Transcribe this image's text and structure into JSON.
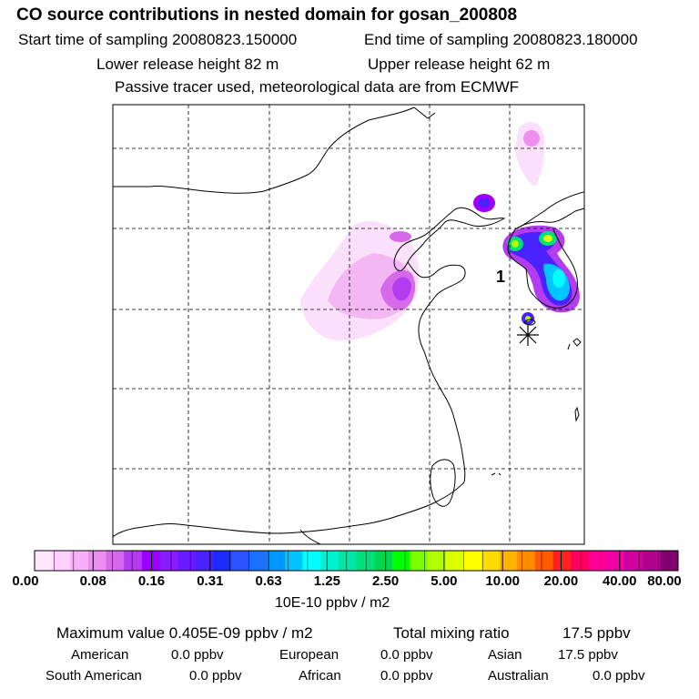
{
  "header": {
    "title": "CO  source contributions in nested domain for gosan_200808",
    "start_label": "Start time of sampling 20080823.150000",
    "end_label": "End time of sampling 20080823.180000",
    "lower_label": "Lower release height   82 m",
    "upper_label": "Upper release height   62 m",
    "note": "Passive tracer used, meteorological data are from ECMWF"
  },
  "map": {
    "receptor_label": "1",
    "station_marker": "receptor-star"
  },
  "colorbar": {
    "ticks": [
      "0.00",
      "0.08",
      "0.16",
      "0.31",
      "0.63",
      "1.25",
      "2.50",
      "5.00",
      "10.00",
      "20.00",
      "40.00",
      "80.00"
    ],
    "colors": [
      "#ffe8ff",
      "#ffd0ff",
      "#f7b0f7",
      "#ee8ef0",
      "#d66aea",
      "#b33cf0",
      "#9a00ff",
      "#8a1cff",
      "#6a1aff",
      "#4a22ff",
      "#1c2cff",
      "#2a52ff",
      "#1a70ff",
      "#0096ff",
      "#00c6ff",
      "#00ffff",
      "#00f0d0",
      "#00e6a6",
      "#00e07a",
      "#00d650",
      "#00ff00",
      "#7cff00",
      "#b2ff00",
      "#dcff00",
      "#ffff00",
      "#ffdc00",
      "#ffb400",
      "#ff8c00",
      "#ff5a00",
      "#ff2020",
      "#ff0060",
      "#ff0096",
      "#f000a6",
      "#d000a0",
      "#b0008c",
      "#800070"
    ],
    "unit": "10E-10 ppbv / m2"
  },
  "stats": {
    "max_label": "Maximum value  0.405E-09 ppbv / m2",
    "total_label": "Total mixing ratio",
    "total_value": "17.5 ppbv"
  },
  "sources": [
    {
      "name": "American",
      "value": "0.0 ppbv"
    },
    {
      "name": "European",
      "value": "0.0 ppbv"
    },
    {
      "name": "Asian",
      "value": "17.5 ppbv"
    },
    {
      "name": "South American",
      "value": "0.0 ppbv"
    },
    {
      "name": "African",
      "value": "0.0 ppbv"
    },
    {
      "name": "Australian",
      "value": "0.0 ppbv"
    }
  ]
}
